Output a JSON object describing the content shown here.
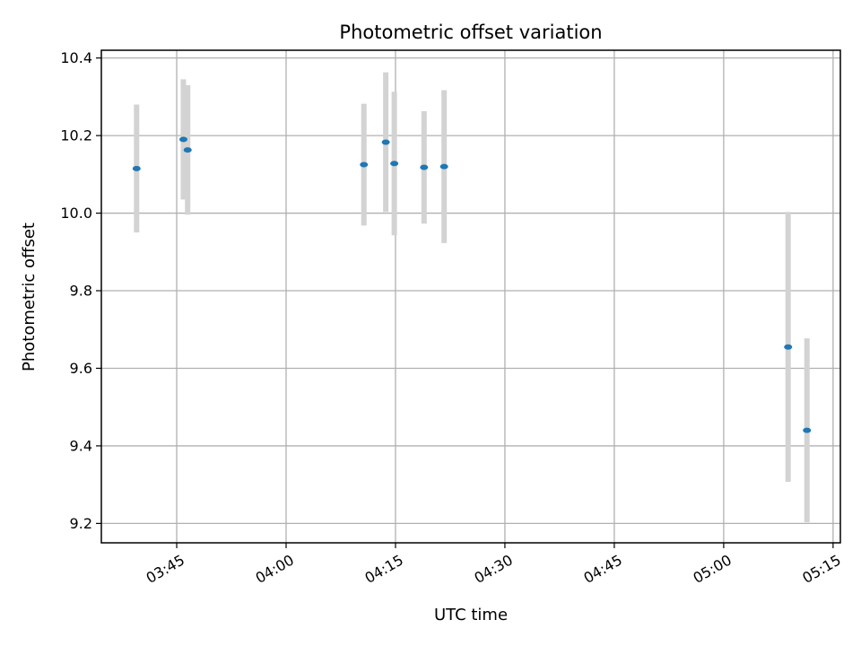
{
  "chart_data": {
    "type": "scatter",
    "title": "Photometric offset variation",
    "xlabel": "UTC time",
    "ylabel": "Photometric offset",
    "grid": true,
    "x_ticks": [
      "03:45",
      "04:00",
      "04:15",
      "04:30",
      "04:45",
      "05:00",
      "05:15"
    ],
    "y_ticks": [
      "9.2",
      "9.4",
      "9.6",
      "9.8",
      "10.0",
      "10.2",
      "10.4"
    ],
    "xlim": [
      "03:34:40",
      "05:16:00"
    ],
    "ylim": [
      9.15,
      10.42
    ],
    "points": [
      {
        "x": "03:39:30",
        "y": 10.115,
        "yerr": 0.165
      },
      {
        "x": "03:45:55",
        "y": 10.19,
        "yerr": 0.155
      },
      {
        "x": "03:46:30",
        "y": 10.163,
        "yerr": 0.167
      },
      {
        "x": "04:10:40",
        "y": 10.125,
        "yerr": 0.157
      },
      {
        "x": "04:13:40",
        "y": 10.183,
        "yerr": 0.18
      },
      {
        "x": "04:14:50",
        "y": 10.128,
        "yerr": 0.185
      },
      {
        "x": "04:18:55",
        "y": 10.118,
        "yerr": 0.145
      },
      {
        "x": "04:21:40",
        "y": 10.12,
        "yerr": 0.197
      },
      {
        "x": "05:08:50",
        "y": 9.655,
        "yerr": 0.348
      },
      {
        "x": "05:11:25",
        "y": 9.44,
        "yerr": 0.237
      }
    ],
    "colors": {
      "marker": "#1f77b4",
      "errorbar": "#d3d3d3",
      "grid": "#b0b0b0"
    }
  }
}
